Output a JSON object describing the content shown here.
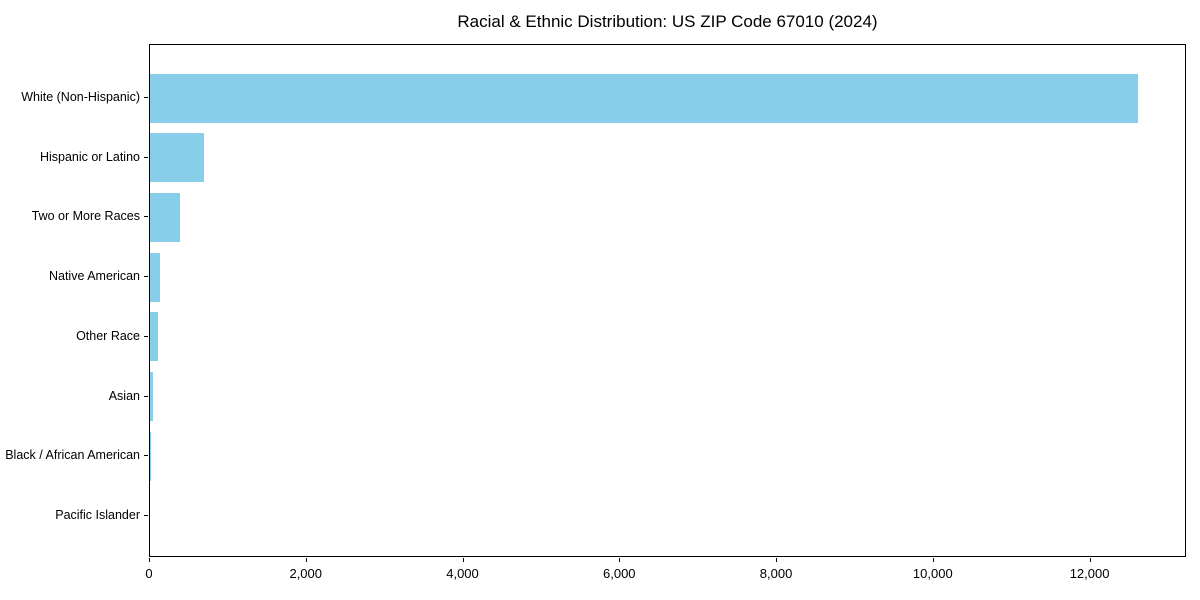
{
  "chart_data": {
    "type": "bar",
    "orientation": "horizontal",
    "title": "Racial & Ethnic Distribution: US ZIP Code 67010 (2024)",
    "categories": [
      "White (Non-Hispanic)",
      "Hispanic or Latino",
      "Two or More Races",
      "Native American",
      "Other Race",
      "Asian",
      "Black / African American",
      "Pacific Islander"
    ],
    "values": [
      12600,
      690,
      380,
      130,
      100,
      40,
      10,
      0
    ],
    "xlabel": "",
    "ylabel": "",
    "xlim": [
      0,
      13230
    ],
    "x_ticks": [
      0,
      2000,
      4000,
      6000,
      8000,
      10000,
      12000
    ],
    "x_tick_labels": [
      "0",
      "2,000",
      "4,000",
      "6,000",
      "8,000",
      "10,000",
      "12,000"
    ],
    "bar_color": "#87CEEB",
    "axis_color": "#000000",
    "background": "#ffffff",
    "grid": false,
    "legend": null
  }
}
